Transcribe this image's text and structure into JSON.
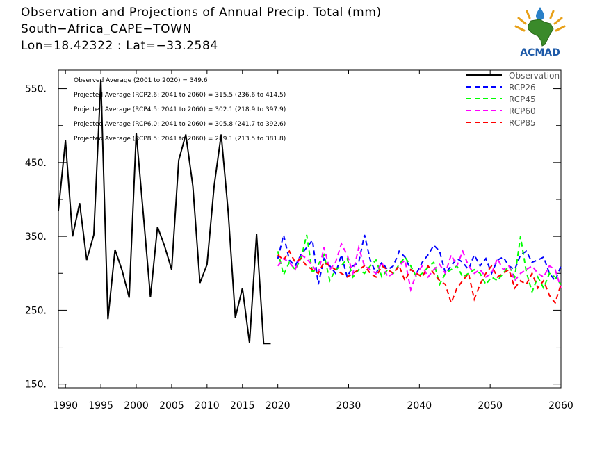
{
  "header": {
    "title": "Observation and Projections of Annual Precip. Total (mm)",
    "location": "South−Africa_CAPE−TOWN",
    "coords": "Lon=18.42322 : Lat=−33.2584"
  },
  "logo": {
    "text": "ACMAD",
    "icon": "africa-map-logo-icon"
  },
  "annotations": [
    "Observed Average (2001 to 2020) = 349.6",
    "Projected Average (RCP2.6: 2041 to 2060) = 315.5 (236.6 to 414.5)",
    "Projected Average (RCP4.5: 2041 to 2060) = 302.1 (218.9 to 397.9)",
    "Projected Average (RCP6.0: 2041 to 2060) = 305.8 (241.7 to 392.6)",
    "Projected Average (RCP8.5: 2041 to 2060) = 289.1 (213.5 to 381.8)"
  ],
  "chart_data": {
    "type": "line",
    "xlim": [
      1989,
      2060
    ],
    "ylim": [
      145,
      575
    ],
    "x_ticks": [
      1990,
      1995,
      2000,
      2005,
      2010,
      2015,
      2020,
      2030,
      2040,
      2050,
      2060
    ],
    "y_ticks": [
      150,
      250,
      350,
      450,
      550
    ],
    "y_tick_labels": [
      "150.",
      "250.",
      "350.",
      "450.",
      "550."
    ],
    "legend_position": "top-right",
    "observation": {
      "name": "Observation",
      "color": "#000000",
      "x": [
        1989,
        1990,
        1991,
        1992,
        1993,
        1994,
        1995,
        1996,
        1997,
        1998,
        1999,
        2000,
        2001,
        2002,
        2003,
        2004,
        2005,
        2006,
        2007,
        2008,
        2009,
        2010,
        2011,
        2012,
        2013,
        2014,
        2015,
        2016,
        2017,
        2018,
        2019
      ],
      "y": [
        385,
        480,
        350,
        395,
        318,
        352,
        562,
        238,
        332,
        304,
        267,
        490,
        380,
        268,
        363,
        337,
        305,
        453,
        488,
        418,
        287,
        312,
        418,
        488,
        382,
        240,
        280,
        206,
        353,
        205,
        205
      ]
    },
    "series": [
      {
        "name": "RCP26",
        "color": "#0000ff",
        "start": 2020,
        "values": [
          320,
          352,
          318,
          310,
          325,
          335,
          345,
          285,
          320,
          310,
          300,
          325,
          295,
          310,
          315,
          352,
          318,
          300,
          315,
          305,
          310,
          330,
          322,
          305,
          300,
          315,
          325,
          338,
          330,
          300,
          310,
          320,
          315,
          305,
          325,
          310,
          320,
          300,
          318,
          322,
          310,
          305,
          325,
          330,
          315,
          318,
          322,
          300,
          290,
          310
        ]
      },
      {
        "name": "RCP45",
        "color": "#00ff00",
        "start": 2020,
        "values": [
          330,
          298,
          315,
          305,
          320,
          352,
          300,
          312,
          325,
          290,
          305,
          310,
          320,
          295,
          305,
          300,
          310,
          318,
          295,
          305,
          300,
          312,
          322,
          310,
          295,
          300,
          308,
          315,
          285,
          300,
          305,
          310,
          295,
          300,
          305,
          300,
          285,
          295,
          290,
          300,
          310,
          295,
          350,
          302,
          275,
          295,
          280,
          300,
          295,
          285
        ]
      },
      {
        "name": "RCP60",
        "color": "#ff00ff",
        "start": 2020,
        "values": [
          310,
          320,
          315,
          305,
          325,
          320,
          310,
          300,
          335,
          305,
          315,
          340,
          325,
          300,
          335,
          310,
          305,
          300,
          315,
          295,
          300,
          310,
          318,
          278,
          300,
          310,
          295,
          305,
          312,
          300,
          325,
          310,
          330,
          310,
          300,
          305,
          295,
          300,
          320,
          305,
          310,
          290,
          300,
          305,
          310,
          300,
          295,
          310,
          305,
          280
        ]
      },
      {
        "name": "RCP85",
        "color": "#ff0000",
        "start": 2020,
        "values": [
          325,
          318,
          330,
          315,
          320,
          310,
          305,
          300,
          315,
          310,
          305,
          300,
          295,
          300,
          305,
          310,
          300,
          295,
          310,
          305,
          300,
          310,
          290,
          305,
          300,
          295,
          310,
          300,
          290,
          285,
          260,
          280,
          290,
          300,
          265,
          285,
          300,
          310,
          295,
          300,
          305,
          280,
          290,
          285,
          300,
          280,
          290,
          270,
          260,
          285
        ]
      }
    ]
  }
}
